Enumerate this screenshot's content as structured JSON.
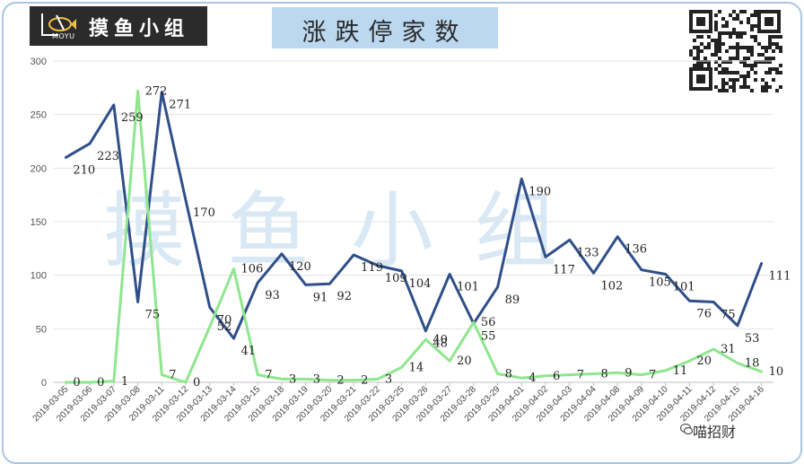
{
  "header": {
    "logo_text": "摸鱼小组",
    "logo_sub": "MOYU",
    "title": "涨跌停家数",
    "watermark": "摸鱼小组",
    "credit": "喵招财"
  },
  "icons": [
    "fish-logo-icon",
    "qr-code-icon",
    "wechat-icon"
  ],
  "chart_data": {
    "type": "line",
    "title": "涨跌停家数",
    "ylim": [
      0,
      300
    ],
    "yticks": [
      0,
      50,
      100,
      150,
      200,
      250,
      300
    ],
    "grid": true,
    "categories": [
      "2019-03-05",
      "2019-03-06",
      "2019-03-07",
      "2019-03-08",
      "2019-03-11",
      "2019-03-12",
      "2019-03-13",
      "2019-03-14",
      "2019-03-15",
      "2019-03-18",
      "2019-03-19",
      "2019-03-20",
      "2019-03-21",
      "2019-03-22",
      "2019-03-25",
      "2019-03-26",
      "2019-03-27",
      "2019-03-28",
      "2019-03-29",
      "2019-04-01",
      "2019-04-02",
      "2019-04-03",
      "2019-04-04",
      "2019-04-08",
      "2019-04-09",
      "2019-04-10",
      "2019-04-11",
      "2019-04-12",
      "2019-04-15",
      "2019-04-16"
    ],
    "series": [
      {
        "color": "#2f4f8a",
        "values": [
          210,
          223,
          259,
          75,
          271,
          170,
          70,
          41,
          93,
          120,
          91,
          92,
          119,
          109,
          104,
          48,
          101,
          55,
          89,
          190,
          117,
          133,
          102,
          136,
          105,
          101,
          76,
          75,
          53,
          111
        ]
      },
      {
        "color": "#8ee68e",
        "values": [
          0,
          0,
          1,
          272,
          7,
          0,
          52,
          106,
          7,
          3,
          3,
          2,
          2,
          3,
          14,
          40,
          20,
          56,
          8,
          4,
          6,
          7,
          8,
          9,
          7,
          11,
          20,
          31,
          18,
          10
        ]
      }
    ]
  }
}
